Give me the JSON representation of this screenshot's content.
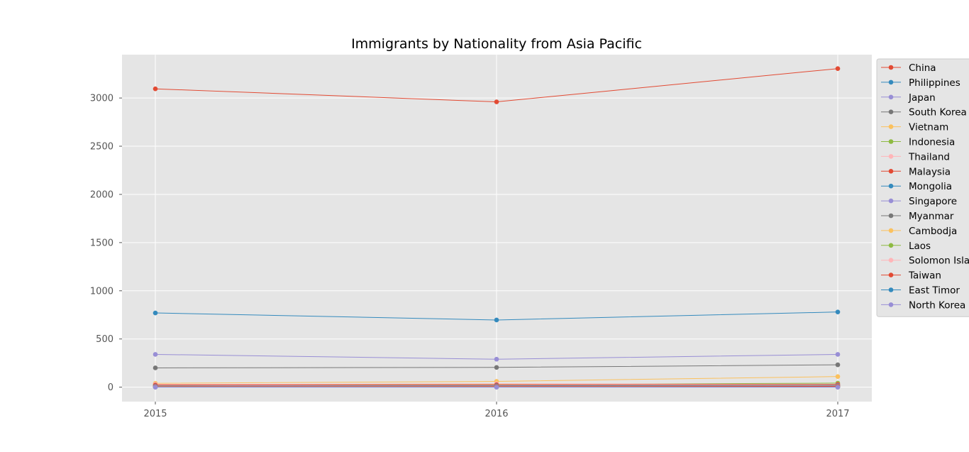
{
  "chart_data": {
    "type": "line",
    "title": "Immigrants by Nationality from Asia Pacific",
    "xlabel": "",
    "ylabel": "",
    "x": [
      "2015",
      "2016",
      "2017"
    ],
    "ylim": [
      -150,
      3450
    ],
    "yticks": [
      0,
      500,
      1000,
      1500,
      2000,
      2500,
      3000
    ],
    "grid": true,
    "legend_position": "right-outside",
    "background": "#e5e5e5",
    "series": [
      {
        "name": "China",
        "color": "#e24a33",
        "values": [
          3095,
          2960,
          3305
        ]
      },
      {
        "name": "Philippines",
        "color": "#348abd",
        "values": [
          770,
          697,
          780
        ]
      },
      {
        "name": "Japan",
        "color": "#988ed5",
        "values": [
          340,
          290,
          340
        ]
      },
      {
        "name": "South Korea",
        "color": "#777777",
        "values": [
          200,
          205,
          232
        ]
      },
      {
        "name": "Vietnam",
        "color": "#fbc15e",
        "values": [
          40,
          60,
          110
        ]
      },
      {
        "name": "Indonesia",
        "color": "#8eba42",
        "values": [
          22,
          28,
          42
        ]
      },
      {
        "name": "Thailand",
        "color": "#ffb5b8",
        "values": [
          30,
          35,
          30
        ]
      },
      {
        "name": "Malaysia",
        "color": "#e24a33",
        "values": [
          22,
          25,
          28
        ]
      },
      {
        "name": "Mongolia",
        "color": "#348abd",
        "values": [
          12,
          15,
          18
        ]
      },
      {
        "name": "Singapore",
        "color": "#988ed5",
        "values": [
          10,
          12,
          15
        ]
      },
      {
        "name": "Myanmar",
        "color": "#777777",
        "values": [
          8,
          10,
          12
        ]
      },
      {
        "name": "Cambodja",
        "color": "#fbc15e",
        "values": [
          6,
          8,
          10
        ]
      },
      {
        "name": "Laos",
        "color": "#8eba42",
        "values": [
          3,
          4,
          5
        ]
      },
      {
        "name": "Solomon Islands",
        "color": "#ffb5b8",
        "values": [
          1,
          2,
          1
        ]
      },
      {
        "name": "Taiwan",
        "color": "#e24a33",
        "values": [
          5,
          6,
          8
        ]
      },
      {
        "name": "East Timor",
        "color": "#348abd",
        "values": [
          1,
          1,
          1
        ]
      },
      {
        "name": "North Korea",
        "color": "#988ed5",
        "values": [
          0,
          0,
          0
        ]
      }
    ]
  }
}
